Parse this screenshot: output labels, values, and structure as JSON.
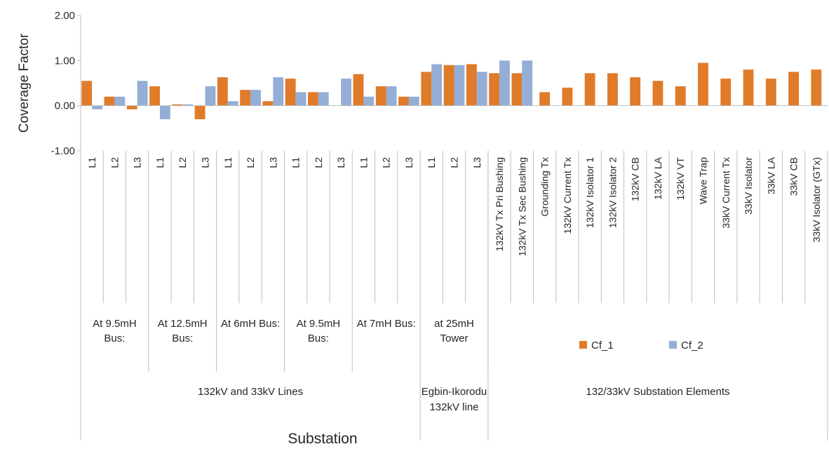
{
  "chart_data": {
    "type": "bar",
    "ylabel": "Coverage Factor",
    "xlabel": "Substation",
    "ylim": [
      -1.0,
      2.0
    ],
    "yticks": [
      "2.00",
      "1.00",
      "0.00",
      "-1.00"
    ],
    "grid": false,
    "legend_position": "lower-right",
    "categories": [
      "L1",
      "L2",
      "L3",
      "L1",
      "L2",
      "L3",
      "L1",
      "L2",
      "L3",
      "L1",
      "L2",
      "L3",
      "L1",
      "L2",
      "L3",
      "L1",
      "L2",
      "L3",
      "132kV Tx Pri Bushing",
      "132kV Tx Sec Bushing",
      "Grounding Tx",
      "132kV Current Tx",
      "132kV Isolator 1",
      "132kV Isolator 2",
      "132kV CB",
      "132kV LA",
      "132kV VT",
      "Wave Trap",
      "33kV Current Tx",
      "33kV Isolator",
      "33kV LA",
      "33kV CB",
      "33kV Isolator (GTx)"
    ],
    "series": [
      {
        "name": "Cf_1",
        "color": "#E07B2A",
        "values": [
          0.55,
          0.2,
          -0.08,
          0.43,
          0.03,
          -0.3,
          0.63,
          0.35,
          0.1,
          0.6,
          0.3,
          0.0,
          0.7,
          0.43,
          0.2,
          0.75,
          0.9,
          0.92,
          0.72,
          0.72,
          0.3,
          0.4,
          0.72,
          0.72,
          0.63,
          0.55,
          0.43,
          0.95,
          0.6,
          0.8,
          0.6,
          0.75,
          0.8
        ]
      },
      {
        "name": "Cf_2",
        "color": "#94AED6",
        "values": [
          -0.08,
          0.2,
          0.55,
          -0.3,
          0.03,
          0.43,
          0.1,
          0.35,
          0.63,
          0.3,
          0.3,
          0.6,
          0.2,
          0.43,
          0.2,
          0.92,
          0.9,
          0.75,
          1.0,
          1.0,
          null,
          null,
          null,
          null,
          null,
          null,
          null,
          null,
          null,
          null,
          null,
          null,
          null
        ]
      }
    ],
    "groups_level2": [
      {
        "label": "At 9.5mH Bus:",
        "start": 0,
        "end": 2
      },
      {
        "label": "At 12.5mH Bus:",
        "start": 3,
        "end": 5
      },
      {
        "label": "At 6mH Bus:",
        "start": 6,
        "end": 8
      },
      {
        "label": "At 9.5mH Bus:",
        "start": 9,
        "end": 11
      },
      {
        "label": "At 7mH Bus:",
        "start": 12,
        "end": 14
      },
      {
        "label": "at 25mH Tower",
        "start": 15,
        "end": 17
      }
    ],
    "groups_level3": [
      {
        "label": "132kV and 33kV Lines",
        "start": 0,
        "end": 14
      },
      {
        "label": "Egbin-Ikorodu 132kV line",
        "start": 15,
        "end": 17
      },
      {
        "label": "132/33kV Substation Elements",
        "start": 18,
        "end": 32
      }
    ]
  }
}
